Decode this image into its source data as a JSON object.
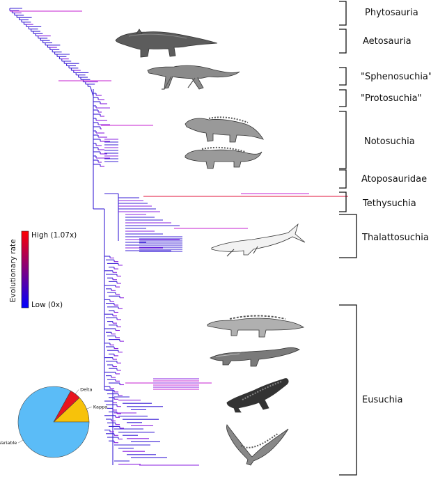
{
  "clades": [
    {
      "name": "Phytosauria"
    },
    {
      "name": "Aetosauria"
    },
    {
      "name": "\"Sphenosuchia\""
    },
    {
      "name": "\"Protosuchia\""
    },
    {
      "name": "Notosuchia"
    },
    {
      "name": "Atoposauridae"
    },
    {
      "name": "Tethysuchia"
    },
    {
      "name": "Thalattosuchia"
    },
    {
      "name": "Eusuchia"
    }
  ],
  "legend": {
    "title": "Evolutionary rate",
    "high_label": "High (1.07x)",
    "low_label": "Low (0x)",
    "high_color": "#ff0000",
    "low_color": "#0000ff"
  },
  "pie": {
    "slices": [
      {
        "label": "Variable",
        "value": 83,
        "color": "#5bbcf7"
      },
      {
        "label": "Delta",
        "value": 5,
        "color": "#e8141e"
      },
      {
        "label": "Kappa",
        "value": 12,
        "color": "#f7c20a"
      }
    ]
  },
  "silhouettes": [
    {
      "name": "aetosaur"
    },
    {
      "name": "sphenosuchian"
    },
    {
      "name": "notosuchian-1"
    },
    {
      "name": "notosuchian-2"
    },
    {
      "name": "thalattosuchian"
    },
    {
      "name": "crocodile"
    },
    {
      "name": "tomistoma"
    },
    {
      "name": "alligator"
    },
    {
      "name": "gharial"
    }
  ]
}
